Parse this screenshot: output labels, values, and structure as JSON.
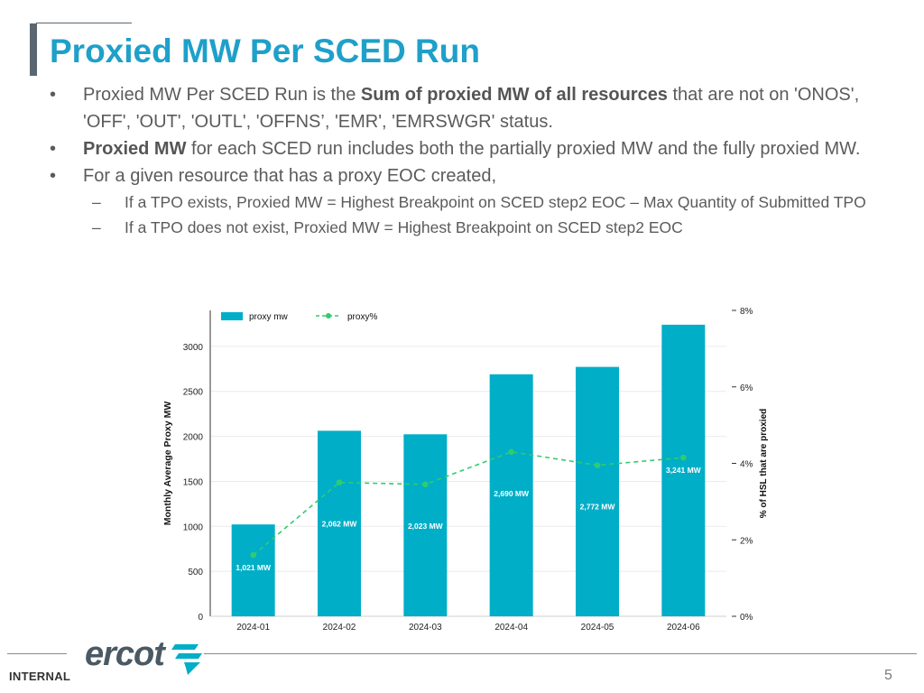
{
  "slide": {
    "title": "Proxied MW Per SCED Run",
    "bullet1": {
      "pre": "Proxied MW Per SCED Run is the ",
      "bold": "Sum of proxied MW of all resources",
      "post": " that are not on 'ONOS', 'OFF', 'OUT', 'OUTL', 'OFFNS’, 'EMR', 'EMRSWGR' status."
    },
    "bullet2": {
      "bold": "Proxied MW",
      "post": " for each SCED run includes both the partially proxied MW and the fully proxied MW."
    },
    "bullet3": "For a given resource that has a proxy EOC created,",
    "sub1": "If a TPO exists, Proxied MW = Highest Breakpoint on SCED step2 EOC – Max Quantity of Submitted TPO",
    "sub2": "If  a TPO does not exist, Proxied MW = Highest Breakpoint on SCED step2 EOC",
    "bullet_mark": "•",
    "dash_mark": "–"
  },
  "footer": {
    "internal": "INTERNAL",
    "page_number": "5",
    "logo_text": "ercot"
  },
  "colors": {
    "title": "#1ea0c9",
    "bar": "#00aec7",
    "line": "#2ecc71"
  },
  "chart_data": {
    "type": "bar",
    "categories": [
      "2024-01",
      "2024-02",
      "2024-03",
      "2024-04",
      "2024-05",
      "2024-06"
    ],
    "series": [
      {
        "name": "proxy mw",
        "type": "bar",
        "axis": "left",
        "values": [
          1021,
          2062,
          2023,
          2690,
          2772,
          3241
        ],
        "labels": [
          "1,021 MW",
          "2,062 MW",
          "2,023 MW",
          "2,690 MW",
          "2,772 MW",
          "3,241 MW"
        ]
      },
      {
        "name": "proxy%",
        "type": "line",
        "axis": "right",
        "values": [
          1.6,
          3.5,
          3.45,
          4.3,
          3.95,
          4.15
        ]
      }
    ],
    "ylabel": "Monthly Average Proxy MW",
    "y2label": "% of HSL that are proxied",
    "ylim": [
      0,
      3400
    ],
    "yticks": [
      0,
      500,
      1000,
      1500,
      2000,
      2500,
      3000
    ],
    "y2lim": [
      0,
      8
    ],
    "y2ticks": [
      0,
      2,
      4,
      6,
      8
    ],
    "y2tick_labels": [
      "0%",
      "2%",
      "4%",
      "6%",
      "8%"
    ],
    "legend": [
      "proxy mw",
      "proxy%"
    ]
  }
}
